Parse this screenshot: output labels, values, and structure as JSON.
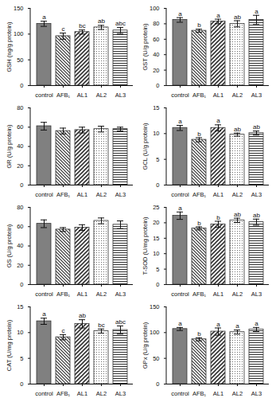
{
  "chart_data": [
    {
      "type": "bar",
      "y_label": "GSH (ng/g protein)",
      "categories": [
        "control",
        "AFB₁",
        "AL1",
        "AL2",
        "AL3"
      ],
      "values": [
        120,
        96,
        104,
        113,
        107
      ],
      "errors": [
        5,
        6,
        4,
        4,
        6
      ],
      "letters": [
        "a",
        "c",
        "bc",
        "ab",
        "abc"
      ],
      "ylim": [
        0,
        150
      ],
      "yticks": [
        0,
        50,
        100,
        150
      ]
    },
    {
      "type": "bar",
      "y_label": "GST (U/g protein)",
      "categories": [
        "control",
        "AFB₁",
        "AL1",
        "AL2",
        "AL3"
      ],
      "values": [
        85,
        71,
        83,
        80,
        85
      ],
      "errors": [
        3,
        2,
        3,
        4,
        6
      ],
      "letters": [
        "a",
        "b",
        "a",
        "ab",
        "a"
      ],
      "ylim": [
        0,
        100
      ],
      "yticks": [
        0,
        20,
        40,
        60,
        80,
        100
      ]
    },
    {
      "type": "bar",
      "y_label": "GR (U/g protein)",
      "categories": [
        "control",
        "AFB₁",
        "AL1",
        "AL2",
        "AL3"
      ],
      "values": [
        61,
        56,
        57,
        58,
        58
      ],
      "errors": [
        4,
        3,
        3,
        3,
        2
      ],
      "ylim": [
        0,
        80
      ],
      "yticks": [
        0,
        20,
        40,
        60,
        80
      ]
    },
    {
      "type": "bar",
      "y_label": "GCL (U/g protein)",
      "categories": [
        "control",
        "AFB₁",
        "AL1",
        "AL2",
        "AL3"
      ],
      "values": [
        11.1,
        8.8,
        11.1,
        9.8,
        10.1
      ],
      "errors": [
        0.5,
        0.4,
        0.6,
        0.3,
        0.4
      ],
      "letters": [
        "a",
        "b",
        "a",
        "ab",
        "ab"
      ],
      "ylim": [
        0,
        15
      ],
      "yticks": [
        0,
        5,
        10,
        15
      ]
    },
    {
      "type": "bar",
      "y_label": "GS (U/g protein)",
      "categories": [
        "control",
        "AFB₁",
        "AL1",
        "AL2",
        "AL3"
      ],
      "values": [
        63,
        57,
        59,
        66,
        62
      ],
      "errors": [
        4,
        2,
        3,
        3,
        4
      ],
      "ylim": [
        0,
        80
      ],
      "yticks": [
        0,
        20,
        40,
        60,
        80
      ]
    },
    {
      "type": "bar",
      "y_label": "T-SOD (U/mg protein)",
      "categories": [
        "control",
        "AFB₁",
        "AL1",
        "AL2",
        "AL3"
      ],
      "values": [
        22.3,
        18.2,
        19.5,
        20.8,
        20.2
      ],
      "errors": [
        1.2,
        0.5,
        1.0,
        0.7,
        1.0
      ],
      "letters": [
        "a",
        "b",
        "b",
        "ab",
        "ab"
      ],
      "ylim": [
        0,
        25
      ],
      "yticks": [
        0,
        5,
        10,
        15,
        20,
        25
      ]
    },
    {
      "type": "bar",
      "y_label": "CAT (U/mg protein)",
      "categories": [
        "control",
        "AFB₁",
        "AL1",
        "AL2",
        "AL3"
      ],
      "values": [
        12.2,
        9.1,
        11.7,
        10.3,
        10.5
      ],
      "errors": [
        0.6,
        0.5,
        0.8,
        0.4,
        0.8
      ],
      "letters": [
        "a",
        "c",
        "ab",
        "bc",
        "abc"
      ],
      "ylim": [
        0,
        15
      ],
      "yticks": [
        0,
        5,
        10,
        15
      ]
    },
    {
      "type": "bar",
      "y_label": "GPx (U/g protein)",
      "categories": [
        "control",
        "AFB₁",
        "AL1",
        "AL2",
        "AL3"
      ],
      "values": [
        107,
        87,
        102,
        101,
        106
      ],
      "errors": [
        3,
        3,
        7,
        4,
        4
      ],
      "letters": [
        "a",
        "b",
        "a",
        "a",
        "a"
      ],
      "ylim": [
        0,
        150
      ],
      "yticks": [
        0,
        50,
        100,
        150
      ]
    }
  ]
}
